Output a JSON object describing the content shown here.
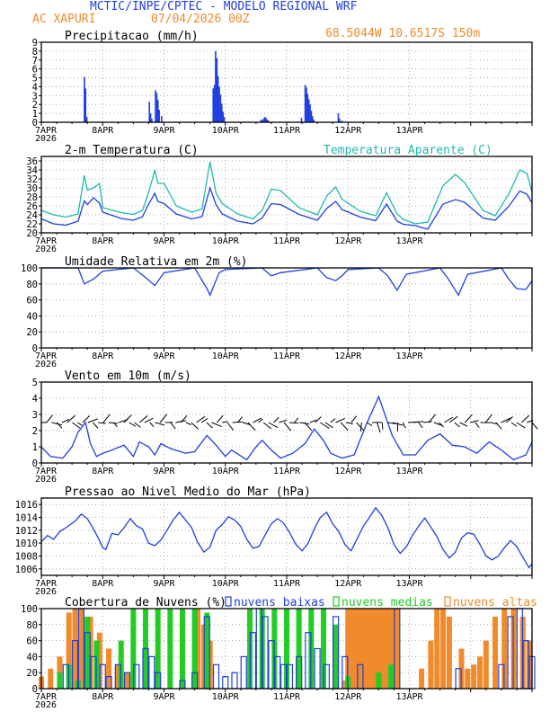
{
  "header": {
    "title": "MCTIC/INPE/CPTEC - MODELO REGIONAL WRF",
    "location": "AC XAPURI",
    "run": "07/04/2026 00Z",
    "coords": "68.5044W  10.6517S 150m"
  },
  "colors": {
    "blue": "#1f3fe0",
    "cyan": "#20b8b0",
    "orange": "#f08a2a",
    "green": "#22cc22",
    "black": "#000000"
  },
  "x_axis": {
    "labels": [
      "7APR",
      "8APR",
      "9APR",
      "10APR",
      "11APR",
      "12APR",
      "13APR"
    ],
    "year": "2026"
  },
  "chart_data": [
    {
      "id": "precip",
      "type": "bar",
      "title": "Precipitacao (mm/h)",
      "ylim": [
        0,
        9
      ],
      "yticks": [
        0,
        1,
        2,
        3,
        4,
        5,
        6,
        7,
        8,
        9
      ],
      "x_unit": "days since 7APR 00Z",
      "x": [
        0.7,
        0.72,
        0.74,
        1.76,
        1.78,
        1.8,
        1.86,
        1.88,
        1.9,
        1.92,
        1.96,
        2.8,
        2.82,
        2.84,
        2.86,
        2.88,
        2.9,
        2.92,
        2.94,
        2.96,
        2.98,
        3.58,
        3.6,
        3.62,
        3.64,
        3.66,
        3.68,
        3.7,
        4.24,
        4.3,
        4.32,
        4.34,
        4.36,
        4.38,
        4.4,
        4.42,
        4.44,
        4.84,
        4.86,
        4.9,
        6.9,
        7.9
      ],
      "values": [
        5.1,
        3.8,
        0.6,
        2.3,
        1.0,
        0.4,
        3.6,
        3.3,
        2.5,
        1.4,
        0.7,
        3.8,
        4.2,
        8.0,
        7.2,
        5.2,
        4.0,
        3.1,
        2.1,
        1.2,
        0.6,
        0.3,
        0.2,
        0.4,
        0.6,
        0.5,
        0.3,
        0.2,
        0.5,
        4.2,
        3.9,
        3.2,
        2.6,
        2.0,
        1.3,
        0.7,
        0.3,
        1.0,
        0.4,
        0.2,
        0.1,
        0.1
      ]
    },
    {
      "id": "temp",
      "type": "line",
      "title": "2-m Temperatura (C)",
      "legend": "Temperatura Aparente (C)",
      "ylim": [
        20,
        37
      ],
      "yticks": [
        20,
        22,
        24,
        26,
        28,
        30,
        32,
        34,
        36
      ],
      "series": [
        {
          "name": "2-m Temperatura (C)",
          "x": [
            0,
            0.2,
            0.4,
            0.6,
            0.7,
            0.75,
            0.85,
            0.95,
            1.0,
            1.3,
            1.5,
            1.65,
            1.75,
            1.85,
            1.9,
            2.0,
            2.2,
            2.45,
            2.62,
            2.75,
            2.85,
            2.95,
            3.2,
            3.45,
            3.6,
            3.75,
            3.9,
            4.2,
            4.5,
            4.66,
            4.8,
            4.9,
            5.2,
            5.45,
            5.63,
            5.8,
            5.9,
            6.1,
            6.3,
            6.55,
            6.75,
            6.9,
            7.2,
            7.4,
            7.62,
            7.8,
            7.92,
            8.0
          ],
          "values": [
            23.1,
            22.0,
            21.7,
            22.6,
            27.1,
            26.3,
            27.8,
            26.6,
            24.6,
            23.2,
            22.8,
            23.6,
            26.4,
            28.8,
            27.0,
            26.5,
            24.2,
            23.1,
            23.6,
            30.0,
            26.2,
            24.2,
            22.6,
            22.0,
            23.3,
            26.5,
            26.3,
            24.1,
            22.8,
            25.5,
            27.0,
            25.2,
            23.5,
            22.7,
            26.4,
            22.6,
            21.9,
            21.6,
            20.8,
            26.4,
            27.4,
            26.8,
            23.3,
            22.8,
            25.9,
            29.3,
            28.6,
            26.6
          ]
        },
        {
          "name": "Temperatura Aparente (C)",
          "x": [
            0,
            0.2,
            0.4,
            0.6,
            0.7,
            0.75,
            0.85,
            0.95,
            1.0,
            1.3,
            1.5,
            1.65,
            1.75,
            1.85,
            1.9,
            2.0,
            2.2,
            2.45,
            2.62,
            2.75,
            2.85,
            2.95,
            3.2,
            3.45,
            3.6,
            3.75,
            3.9,
            4.2,
            4.5,
            4.66,
            4.8,
            4.9,
            5.2,
            5.45,
            5.63,
            5.8,
            5.9,
            6.1,
            6.3,
            6.55,
            6.75,
            6.9,
            7.2,
            7.4,
            7.62,
            7.8,
            7.92,
            8.0
          ],
          "values": [
            25.0,
            24.0,
            23.5,
            24.2,
            32.8,
            29.5,
            30.0,
            31.0,
            25.6,
            24.5,
            24.1,
            25.0,
            29.0,
            34.0,
            31.0,
            31.0,
            26.0,
            24.6,
            25.3,
            35.8,
            28.8,
            26.5,
            24.2,
            23.1,
            25.0,
            29.7,
            29.4,
            25.6,
            24.0,
            28.3,
            30.2,
            27.5,
            24.8,
            23.8,
            28.9,
            24.2,
            23.0,
            22.0,
            22.4,
            30.5,
            33.0,
            31.2,
            25.0,
            23.8,
            28.6,
            34.0,
            33.2,
            29.0
          ]
        }
      ]
    },
    {
      "id": "rh",
      "type": "line",
      "title": "Umidade Relativa em 2m (%)",
      "ylim": [
        0,
        100
      ],
      "yticks": [
        0,
        20,
        40,
        60,
        80,
        100
      ],
      "x": [
        0,
        0.6,
        0.7,
        0.85,
        1.0,
        1.5,
        1.7,
        1.85,
        2.0,
        2.5,
        2.7,
        2.75,
        2.9,
        3.0,
        3.6,
        3.75,
        3.9,
        4.5,
        4.65,
        4.8,
        4.9,
        5.0,
        5.5,
        5.65,
        5.8,
        5.95,
        6.5,
        6.62,
        6.8,
        6.95,
        7.5,
        7.62,
        7.75,
        7.9,
        8.0
      ],
      "values": [
        100,
        100,
        80,
        86,
        96,
        100,
        88,
        78,
        94,
        100,
        74,
        66,
        94,
        98,
        100,
        90,
        94,
        100,
        88,
        84,
        90,
        98,
        100,
        90,
        72,
        92,
        100,
        88,
        66,
        92,
        100,
        86,
        74,
        73,
        84
      ]
    },
    {
      "id": "wind",
      "type": "line",
      "title": "Vento em 10m (m/s)",
      "ylim": [
        0,
        5
      ],
      "yticks": [
        0,
        1,
        2,
        3,
        4,
        5
      ],
      "x": [
        0,
        0.15,
        0.35,
        0.5,
        0.6,
        0.72,
        0.8,
        0.9,
        1.0,
        1.15,
        1.35,
        1.5,
        1.6,
        1.75,
        1.85,
        1.95,
        2.1,
        2.35,
        2.5,
        2.7,
        2.85,
        3.0,
        3.1,
        3.35,
        3.5,
        3.6,
        3.75,
        3.9,
        4.1,
        4.3,
        4.45,
        4.6,
        4.72,
        4.9,
        5.1,
        5.3,
        5.5,
        5.72,
        5.9,
        6.1,
        6.3,
        6.5,
        6.7,
        6.9,
        7.1,
        7.3,
        7.5,
        7.7,
        7.9,
        8.0
      ],
      "values": [
        1.0,
        0.4,
        0.3,
        1.0,
        1.9,
        2.5,
        1.2,
        0.4,
        0.6,
        0.8,
        1.1,
        0.4,
        1.3,
        1.0,
        0.5,
        1.2,
        0.9,
        0.6,
        0.7,
        1.7,
        1.1,
        0.4,
        0.8,
        0.2,
        1.0,
        1.4,
        0.8,
        0.3,
        0.6,
        1.2,
        2.1,
        1.4,
        0.6,
        0.3,
        0.5,
        2.4,
        4.1,
        1.7,
        0.5,
        0.5,
        1.4,
        1.8,
        1.1,
        1.0,
        0.6,
        1.3,
        0.8,
        0.2,
        0.5,
        1.3
      ]
    },
    {
      "id": "pressure",
      "type": "line",
      "title": "Pressao ao Nivel Medio do Mar (hPa)",
      "ylim": [
        1005,
        1017
      ],
      "yticks": [
        1006,
        1008,
        1010,
        1012,
        1014,
        1016
      ],
      "x": [
        0,
        0.1,
        0.2,
        0.3,
        0.4,
        0.55,
        0.65,
        0.75,
        0.85,
        0.95,
        1.0,
        1.05,
        1.15,
        1.25,
        1.35,
        1.45,
        1.55,
        1.65,
        1.75,
        1.85,
        1.95,
        2.05,
        2.15,
        2.25,
        2.35,
        2.45,
        2.55,
        2.65,
        2.75,
        2.85,
        2.95,
        3.05,
        3.15,
        3.25,
        3.35,
        3.45,
        3.55,
        3.65,
        3.75,
        3.85,
        3.95,
        4.05,
        4.15,
        4.25,
        4.35,
        4.45,
        4.55,
        4.65,
        4.75,
        4.85,
        4.95,
        5.05,
        5.15,
        5.25,
        5.35,
        5.45,
        5.55,
        5.65,
        5.75,
        5.85,
        5.95,
        6.05,
        6.15,
        6.25,
        6.35,
        6.45,
        6.55,
        6.65,
        6.75,
        6.85,
        6.95,
        7.05,
        7.15,
        7.25,
        7.35,
        7.45,
        7.55,
        7.65,
        7.75,
        7.85,
        7.95,
        8.0
      ],
      "values": [
        1010.2,
        1011.2,
        1010.6,
        1011.8,
        1012.4,
        1013.4,
        1014.5,
        1013.8,
        1012.2,
        1010.4,
        1009.3,
        1009.0,
        1011.5,
        1011.3,
        1012.4,
        1013.8,
        1012.7,
        1012.2,
        1010.0,
        1009.6,
        1010.5,
        1012.0,
        1013.6,
        1014.8,
        1013.6,
        1012.4,
        1010.1,
        1008.6,
        1009.4,
        1012.0,
        1012.9,
        1014.1,
        1013.6,
        1012.6,
        1010.6,
        1009.2,
        1009.5,
        1011.3,
        1013.0,
        1013.8,
        1013.1,
        1011.6,
        1009.8,
        1008.8,
        1010.0,
        1012.2,
        1014.0,
        1014.8,
        1013.0,
        1011.8,
        1009.8,
        1008.8,
        1010.7,
        1012.6,
        1014.0,
        1015.5,
        1014.3,
        1012.4,
        1009.8,
        1008.4,
        1009.4,
        1011.2,
        1012.6,
        1013.9,
        1012.5,
        1011.0,
        1009.0,
        1007.7,
        1008.6,
        1010.8,
        1011.6,
        1011.4,
        1009.8,
        1008.0,
        1007.4,
        1008.0,
        1009.3,
        1010.4,
        1009.5,
        1007.8,
        1006.2,
        1006.8
      ]
    },
    {
      "id": "clouds",
      "type": "bar",
      "title": "Cobertura de Nuvens (%)",
      "ylim": [
        0,
        100
      ],
      "yticks": [
        0,
        20,
        40,
        60,
        80,
        100
      ],
      "legend": [
        "nuvens baixas",
        "nuvens medias",
        "nuvens altas"
      ],
      "series": [
        {
          "name": "nuvens baixas",
          "x": [
            0.4,
            0.55,
            0.65,
            0.75,
            0.85,
            1.0,
            1.1,
            1.25,
            1.4,
            1.55,
            1.7,
            1.8,
            1.9,
            2.3,
            2.5,
            2.7,
            2.85,
            3.0,
            3.15,
            3.3,
            3.45,
            3.55,
            3.65,
            3.75,
            3.85,
            3.95,
            4.05,
            4.2,
            4.35,
            4.5,
            4.65,
            4.8,
            4.95,
            5.2,
            5.8,
            6.8,
            7.5,
            7.65,
            7.8,
            7.9,
            8.0
          ],
          "values": [
            30,
            60,
            100,
            70,
            40,
            30,
            15,
            30,
            20,
            30,
            50,
            40,
            20,
            10,
            20,
            90,
            30,
            15,
            20,
            40,
            70,
            100,
            90,
            60,
            40,
            30,
            30,
            40,
            70,
            50,
            30,
            90,
            40,
            30,
            100,
            25,
            30,
            90,
            100,
            60,
            40
          ]
        },
        {
          "name": "nuvens medias",
          "x": [
            0.3,
            0.45,
            0.6,
            0.75,
            0.9,
            1.3,
            1.5,
            1.7,
            1.9,
            2.1,
            2.3,
            2.5,
            2.7,
            3.4,
            3.6,
            3.8,
            4.0,
            4.2,
            4.4,
            4.6,
            4.8,
            5.0,
            5.5,
            5.7
          ],
          "values": [
            20,
            30,
            10,
            90,
            60,
            60,
            100,
            100,
            100,
            100,
            100,
            100,
            95,
            100,
            100,
            100,
            100,
            100,
            100,
            100,
            80,
            15,
            20,
            30
          ]
        },
        {
          "name": "nuvens altas",
          "x": [
            0.0,
            0.15,
            0.3,
            0.45,
            0.55,
            0.65,
            0.8,
            0.95,
            1.1,
            1.25,
            1.4,
            2.55,
            2.65,
            2.75,
            4.95,
            5.0,
            5.05,
            5.1,
            5.15,
            5.2,
            5.25,
            5.3,
            5.35,
            5.4,
            5.45,
            5.5,
            5.55,
            5.6,
            5.65,
            5.7,
            5.75,
            5.8,
            6.2,
            6.35,
            6.45,
            6.55,
            6.65,
            6.85,
            6.95,
            7.05,
            7.15,
            7.25,
            7.4,
            7.55,
            7.7,
            7.85,
            7.95
          ],
          "values": [
            15,
            25,
            40,
            95,
            100,
            100,
            90,
            70,
            50,
            30,
            20,
            100,
            80,
            60,
            10,
            100,
            100,
            100,
            100,
            100,
            100,
            100,
            100,
            100,
            100,
            100,
            100,
            100,
            100,
            100,
            100,
            100,
            25,
            60,
            100,
            100,
            90,
            50,
            25,
            30,
            40,
            60,
            90,
            100,
            100,
            90,
            60
          ]
        }
      ]
    }
  ]
}
